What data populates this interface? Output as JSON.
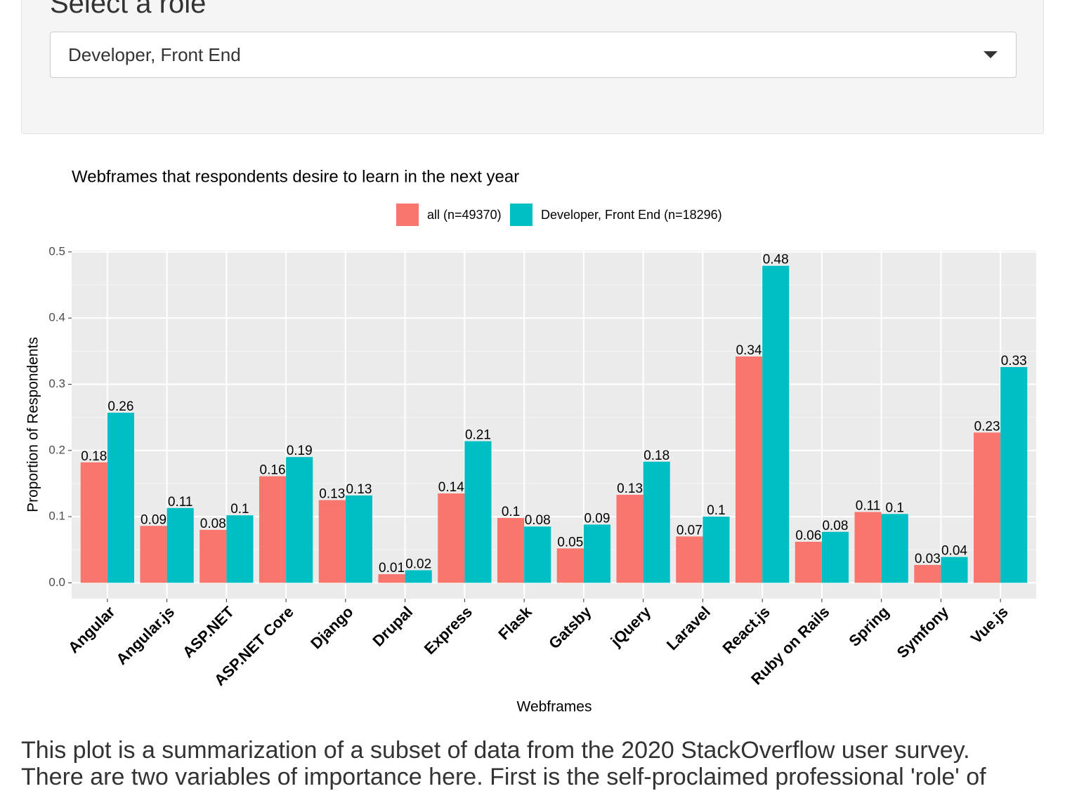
{
  "page": {
    "heading": "Select a role",
    "select": "Developer, Front End",
    "paragraphs": [
      "This plot is a summarization of a subset of data from the 2020 StackOverflow user survey.",
      "There are two variables of importance here. First is the self-proclaimed professional 'role' of"
    ]
  },
  "chart_data": {
    "type": "bar",
    "title": "Webframes that respondents desire to learn in the next year",
    "x_label": "Webframes",
    "y_label": "Proportion of Respondents",
    "categories": [
      "Angular",
      "Angular.js",
      "ASP.NET",
      "ASP.NET Core",
      "Django",
      "Drupal",
      "Express",
      "Flask",
      "Gatsby",
      "jQuery",
      "Laravel",
      "React.js",
      "Ruby on Rails",
      "Spring",
      "Symfony",
      "Vue.js"
    ],
    "series": [
      {
        "name": "all (n=49370)",
        "color": "#f8766d",
        "values": [
          0.182,
          0.086,
          0.08,
          0.161,
          0.125,
          0.013,
          0.135,
          0.098,
          0.052,
          0.133,
          0.07,
          0.342,
          0.062,
          0.107,
          0.027,
          0.227
        ],
        "value_labels": [
          "0.18",
          "0.09",
          "0.08",
          "0.16",
          "0.13",
          "0.01",
          "0.14",
          "0.1",
          "0.05",
          "0.13",
          "0.07",
          "0.34",
          "0.06",
          "0.11",
          "0.03",
          "0.23"
        ]
      },
      {
        "name": "Developer, Front End (n=18296)",
        "color": "#00bfc4",
        "values": [
          0.257,
          0.113,
          0.102,
          0.19,
          0.132,
          0.019,
          0.214,
          0.085,
          0.088,
          0.183,
          0.1,
          0.479,
          0.077,
          0.104,
          0.039,
          0.326
        ],
        "value_labels": [
          "0.26",
          "0.11",
          "0.1",
          "0.19",
          "0.13",
          "0.02",
          "0.21",
          "0.08",
          "0.09",
          "0.18",
          "0.1",
          "0.48",
          "0.08",
          "0.1",
          "0.04",
          "0.33"
        ]
      }
    ],
    "ylim": [
      -0.024,
      0.502
    ],
    "yticks": [
      {
        "value": 0,
        "label": "0.0"
      },
      0.1,
      0.2,
      0.3,
      0.4,
      0.5
    ],
    "grid": true
  }
}
